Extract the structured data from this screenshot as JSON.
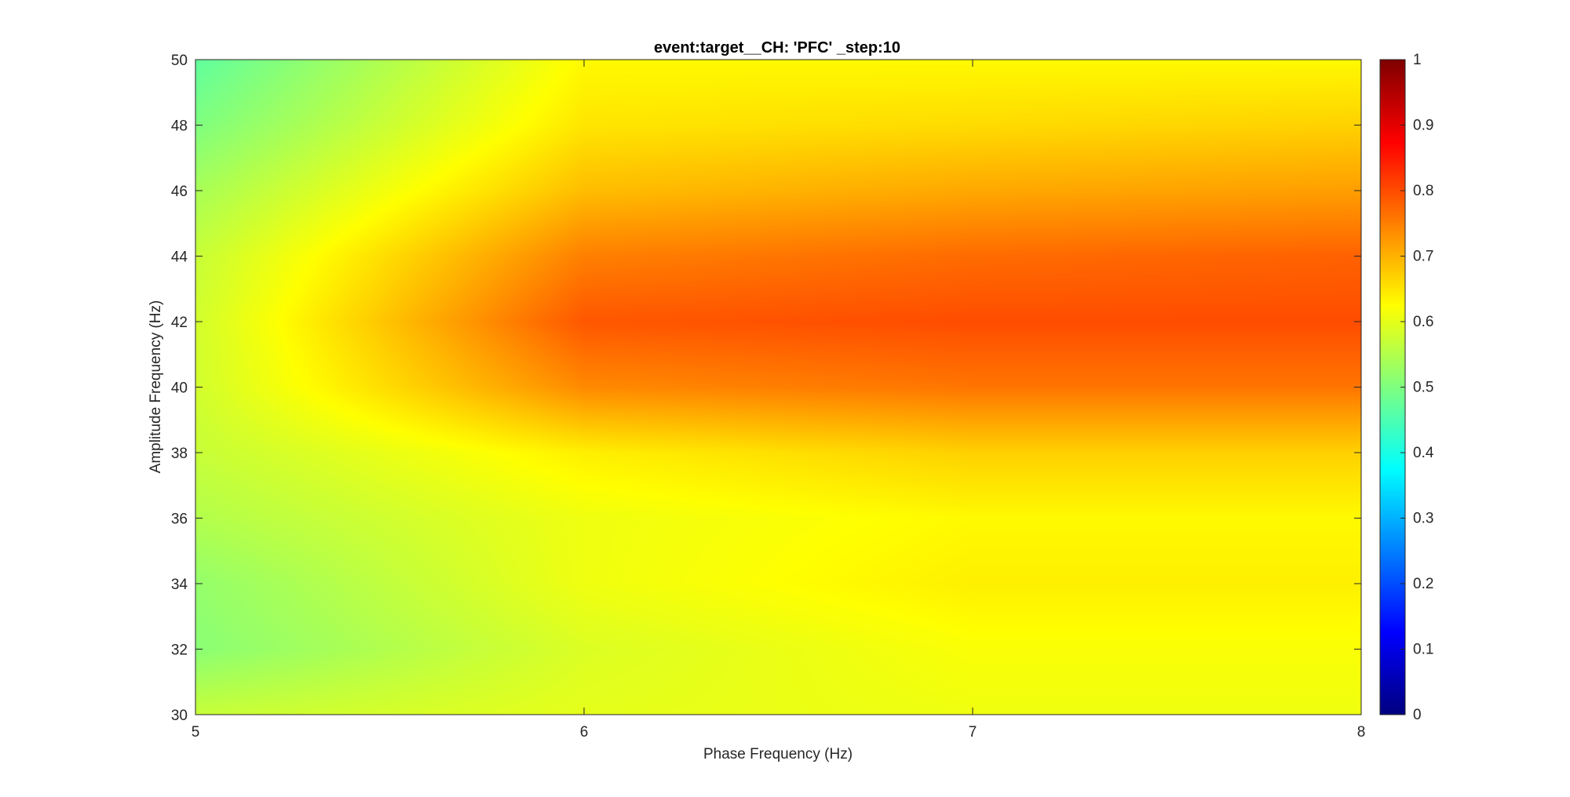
{
  "chart_data": {
    "type": "heatmap",
    "title": "event:target__CH: 'PFC' _step:10",
    "xlabel": "Phase Frequency (Hz)",
    "ylabel": "Amplitude Frequency (Hz)",
    "xlim": [
      5,
      8
    ],
    "ylim": [
      30,
      50
    ],
    "x_ticks": [
      5,
      6,
      7,
      8
    ],
    "y_ticks": [
      30,
      32,
      34,
      36,
      38,
      40,
      42,
      44,
      46,
      48,
      50
    ],
    "colorbar": {
      "colormap": "jet",
      "clim": [
        0,
        1
      ],
      "ticks": [
        0,
        0.1,
        0.2,
        0.3,
        0.4,
        0.5,
        0.6,
        0.7,
        0.8,
        0.9,
        1
      ]
    },
    "x": [
      5,
      6,
      7,
      8
    ],
    "y": [
      30,
      32,
      34,
      36,
      38,
      40,
      42,
      44,
      46,
      48,
      50
    ],
    "z": [
      [
        0.57,
        0.6,
        0.61,
        0.61
      ],
      [
        0.51,
        0.59,
        0.62,
        0.62
      ],
      [
        0.52,
        0.61,
        0.64,
        0.64
      ],
      [
        0.55,
        0.61,
        0.63,
        0.63
      ],
      [
        0.57,
        0.64,
        0.67,
        0.67
      ],
      [
        0.58,
        0.74,
        0.76,
        0.76
      ],
      [
        0.58,
        0.79,
        0.8,
        0.8
      ],
      [
        0.57,
        0.75,
        0.77,
        0.78
      ],
      [
        0.54,
        0.69,
        0.71,
        0.72
      ],
      [
        0.5,
        0.65,
        0.66,
        0.67
      ],
      [
        0.47,
        0.63,
        0.63,
        0.63
      ]
    ]
  }
}
